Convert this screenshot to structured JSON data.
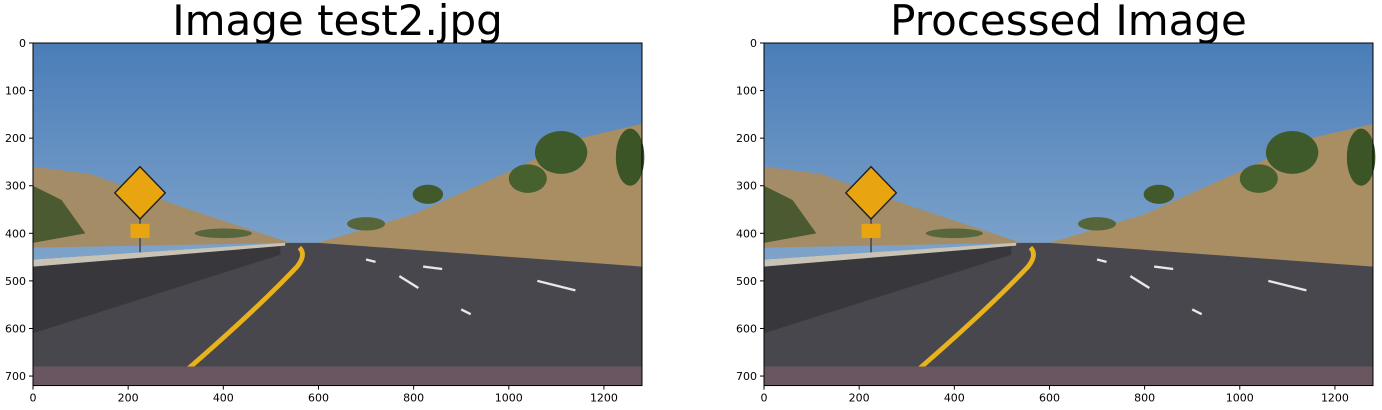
{
  "chart_data": [
    {
      "type": "image",
      "title": "Image test2.jpg",
      "xlim": [
        0,
        1280
      ],
      "ylim": [
        720,
        0
      ],
      "xticks": [
        0,
        200,
        400,
        600,
        800,
        1000,
        1200
      ],
      "yticks": [
        0,
        100,
        200,
        300,
        400,
        500,
        600,
        700
      ]
    },
    {
      "type": "image",
      "title": "Processed Image",
      "xlim": [
        0,
        1280
      ],
      "ylim": [
        720,
        0
      ],
      "xticks": [
        0,
        200,
        400,
        600,
        800,
        1000,
        1200
      ],
      "yticks": [
        0,
        100,
        200,
        300,
        400,
        500,
        600,
        700
      ]
    }
  ]
}
